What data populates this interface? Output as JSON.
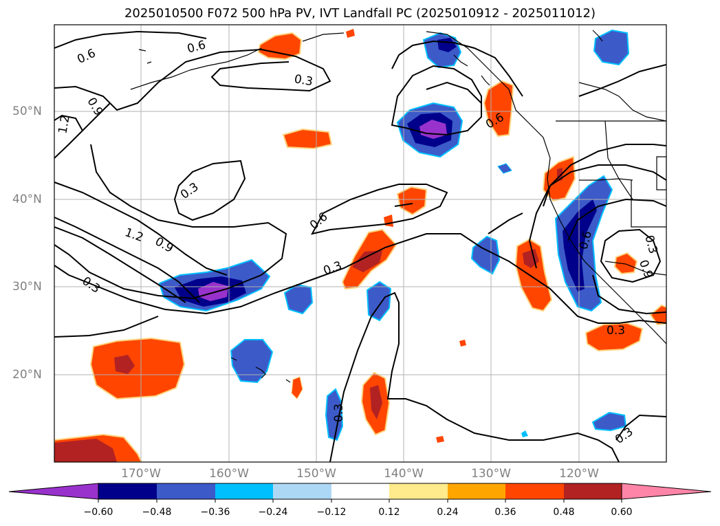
{
  "title": "2025010500 F072 500 hPa PV, IVT Landfall PC (2025010912 - 2025011012)",
  "map": {
    "lat_labels": [
      "50°N",
      "40°N",
      "30°N",
      "20°N"
    ],
    "lon_labels": [
      "170°W",
      "160°W",
      "150°W",
      "140°W",
      "130°W",
      "120°W"
    ],
    "contour_labels": [
      "0.6",
      "0.3",
      "0.9",
      "1.2",
      "0.3",
      "0.6",
      "1.2",
      "0.9",
      "0.3",
      "0.3",
      "0.6",
      "0.3",
      "0.6",
      "0.9",
      "0.6",
      "0.3",
      "0.3",
      "0.3"
    ]
  },
  "colorbar": {
    "tick_labels": [
      "−0.60",
      "−0.48",
      "−0.36",
      "−0.24",
      "−0.12",
      "0.12",
      "0.24",
      "0.36",
      "0.48",
      "0.60"
    ],
    "colors": [
      "#9932cc",
      "#00008b",
      "#3c5ac8",
      "#00bfff",
      "#add8f5",
      "#ffffff",
      "#ffeb8c",
      "#ffa500",
      "#ff4500",
      "#b22222",
      "#ff85a8"
    ]
  }
}
